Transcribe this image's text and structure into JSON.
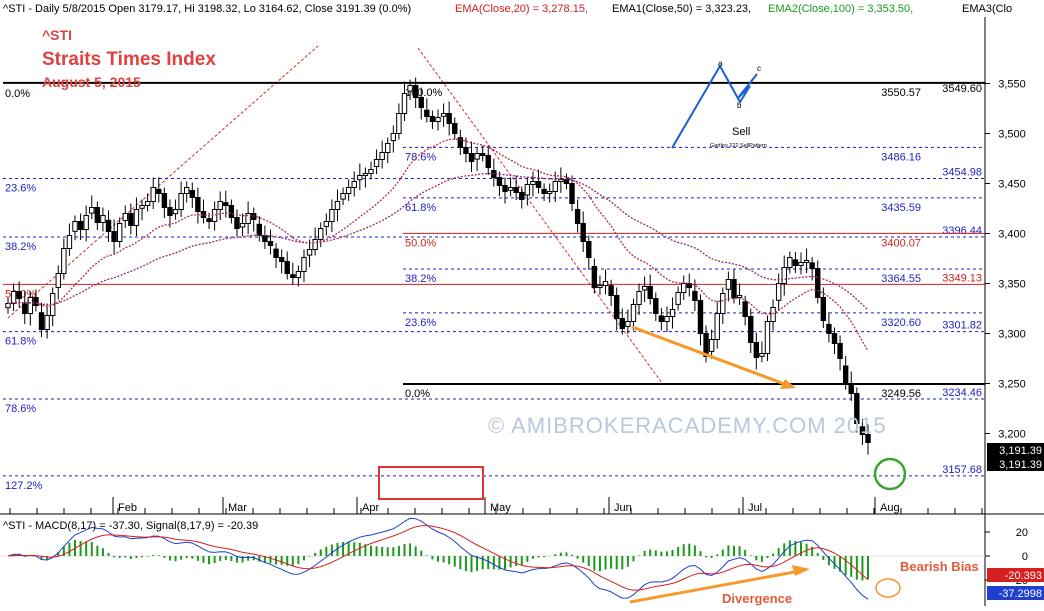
{
  "header": {
    "price_line": "^STI - Daily 5/8/2015 Open 3179.17, Hi 3198.32, Lo 3164.62, Close 3191.39 (0.0%)",
    "ema20": "EMA(Close,20) = 3,278.15,",
    "ema50": "EMA1(Close,50) = 3,323.23,",
    "ema100": "EMA2(Close,100) = 3,353.50,",
    "ema3": "EMA3(Clo"
  },
  "titles": {
    "ticker": "^STI",
    "name": "Straits Times Index",
    "date": "August 5, 2015"
  },
  "watermark": "© AMIBROKERACADEMY.COM 2015",
  "pattern_inset": {
    "points": [
      "a",
      "b",
      "c"
    ],
    "label": "Sell",
    "caption": "Gartley 222 SellPattern"
  },
  "colors": {
    "bg": "#ffffff",
    "candle": "#000000",
    "fib_blue": "#1f1fbf",
    "fib_red": "#d02020",
    "ema_red": "#b03050",
    "ema_purple": "#9a2a6a",
    "orange": "#f59a2a",
    "price_tag": "#000000",
    "macd_line": "#1f3fd0",
    "signal_line": "#d42020",
    "hist": "#1a9a1a",
    "green_circle": "#3aa52a"
  },
  "chart_data": [
    {
      "type": "candlestick",
      "panel": "price",
      "title": "Straits Times Index",
      "x_labels": [
        "Feb",
        "Mar",
        "Apr",
        "May",
        "Jun",
        "Jul",
        "Aug"
      ],
      "ylim": [
        3150,
        3575
      ],
      "yticks": [
        3200,
        3250,
        3300,
        3350,
        3400,
        3450,
        3500,
        3550
      ],
      "ytick_labels": [
        "3,200",
        "3,250",
        "3,300",
        "3,350",
        "3,400",
        "3,450",
        "3,500",
        "3,550"
      ],
      "close_series": [
        3330,
        3342,
        3335,
        3320,
        3336,
        3328,
        3304,
        3318,
        3340,
        3360,
        3385,
        3398,
        3412,
        3404,
        3418,
        3426,
        3411,
        3418,
        3402,
        3392,
        3410,
        3420,
        3408,
        3424,
        3428,
        3432,
        3446,
        3440,
        3426,
        3418,
        3424,
        3440,
        3446,
        3436,
        3422,
        3416,
        3412,
        3424,
        3432,
        3428,
        3416,
        3405,
        3410,
        3420,
        3414,
        3398,
        3392,
        3388,
        3376,
        3372,
        3360,
        3356,
        3362,
        3376,
        3384,
        3394,
        3405,
        3412,
        3424,
        3432,
        3440,
        3446,
        3452,
        3458,
        3460,
        3464,
        3474,
        3481,
        3490,
        3500,
        3520,
        3540,
        3548,
        3536,
        3526,
        3517,
        3512,
        3516,
        3520,
        3510,
        3500,
        3486,
        3480,
        3472,
        3480,
        3478,
        3466,
        3456,
        3448,
        3442,
        3446,
        3441,
        3434,
        3449,
        3452,
        3446,
        3440,
        3442,
        3452,
        3454,
        3450,
        3430,
        3410,
        3392,
        3376,
        3346,
        3348,
        3352,
        3338,
        3315,
        3305,
        3312,
        3329,
        3342,
        3347,
        3335,
        3320,
        3312,
        3317,
        3324,
        3341,
        3350,
        3346,
        3333,
        3300,
        3277,
        3294,
        3320,
        3340,
        3354,
        3336,
        3338,
        3317,
        3291,
        3276,
        3280,
        3312,
        3326,
        3350,
        3366,
        3376,
        3368,
        3371,
        3373,
        3365,
        3336,
        3313,
        3300,
        3290,
        3275,
        3250,
        3240,
        3210,
        3199,
        3191
      ],
      "last_close": 3191.39,
      "annotations": [
        "Sell"
      ],
      "labels_on_chart": [
        "0.0%",
        "100.0%",
        "78.6%",
        "61.8%",
        "50.0%",
        "38.2%",
        "23.6%",
        "61.8%",
        "127.2%"
      ]
    },
    {
      "type": "line",
      "panel": "fib_levels",
      "levels": [
        {
          "pct": "100.0%",
          "value": "3550.57",
          "price": 3550.57,
          "color": "black"
        },
        {
          "pct": "78.6%",
          "value": "3486.16",
          "price": 3486.16,
          "color": "blue"
        },
        {
          "pct": "61.8%",
          "value": "3435.59",
          "price": 3435.59,
          "color": "blue"
        },
        {
          "pct": "50.0%",
          "value": "3400.07",
          "price": 3400.07,
          "color": "red"
        },
        {
          "pct": "38.2%",
          "value": "3364.55",
          "price": 3364.55,
          "color": "blue"
        },
        {
          "pct": "23.6%",
          "value": "3320.60",
          "price": 3320.6,
          "color": "blue"
        },
        {
          "pct": "0.0%",
          "value": "3249.56",
          "price": 3249.56,
          "color": "black"
        }
      ],
      "outer_levels": [
        {
          "pct": "0.0%",
          "value": "3549.60",
          "price": 3549.6,
          "color": "black"
        },
        {
          "pct": "23.6%",
          "value": "3454.98",
          "price": 3454.98,
          "color": "blue"
        },
        {
          "pct": "38.2%",
          "value": "3396.44",
          "price": 3396.44,
          "color": "blue"
        },
        {
          "pct": "50.0%",
          "value": "3349.13",
          "price": 3349.13,
          "color": "red"
        },
        {
          "pct": "61.8%",
          "value": "3301.82",
          "price": 3301.82,
          "color": "blue"
        },
        {
          "pct": "78.6%",
          "value": "3234.46",
          "price": 3234.46,
          "color": "blue"
        },
        {
          "pct": "127.2%",
          "value": "3157.68",
          "price": 3157.68,
          "color": "blue"
        }
      ]
    },
    {
      "type": "line",
      "panel": "macd",
      "title": "^STI - MACD(8,17) = -37.30, Signal(8,17,9) = -20.39",
      "ylim": [
        -40,
        25
      ],
      "yticks": [
        -20,
        0,
        20
      ],
      "ytick_labels": [
        "-20",
        "0",
        "20"
      ],
      "macd_last": -37.2998,
      "signal_last": -20.393,
      "series_names": [
        "MACD(8,17)",
        "Signal(8,17,9)"
      ],
      "annotations": [
        "Bearish Bias",
        "Divergence"
      ]
    }
  ],
  "labels": {
    "price_tags": [
      "3,191.39",
      "3,191.39"
    ],
    "macd_tags": [
      "-20.393",
      "-37.2998"
    ]
  }
}
